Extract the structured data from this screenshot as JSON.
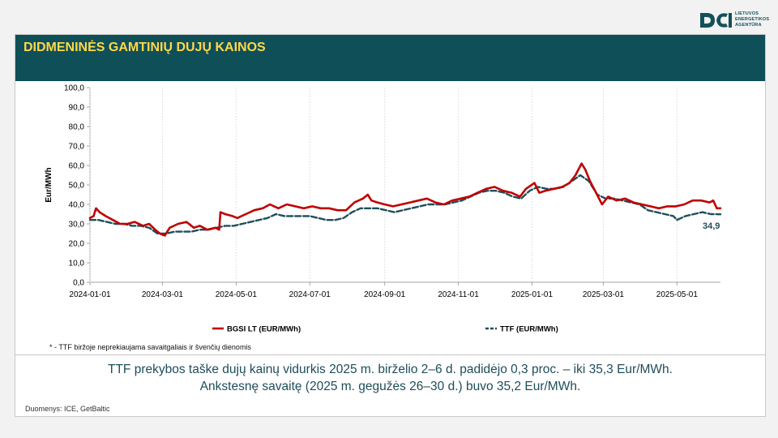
{
  "logo": {
    "lines": [
      "LIETUVOS",
      "ENERGETIKOS",
      "AGENTŪRA"
    ],
    "color": "#12505a"
  },
  "header": {
    "title": "DIDMENINĖS GAMTINIŲ DUJŲ KAINOS",
    "bg_color": "#0f4f57",
    "title_color": "#ffd84a"
  },
  "footnote": "* - TTF biržoje neprekiaujama savaitgaliais ir švenčių dienomis",
  "summary": {
    "line1": "TTF prekybos taške dujų kainų vidurkis 2025 m. birželio 2–6 d. padidėjo 0,3 proc. – iki 35,3 Eur/MWh.",
    "line2": "Ankstesnę savaitę (2025 m. gegužės 26–30 d.) buvo 35,2 Eur/MWh."
  },
  "source": "Duomenys: ICE, GetBaltic",
  "chart_data": {
    "type": "line",
    "title": "",
    "xlabel": "",
    "ylabel": "Eur/MWh",
    "ylim": [
      0,
      100
    ],
    "yticks": [
      "0,0",
      "10,0",
      "20,0",
      "30,0",
      "40,0",
      "50,0",
      "60,0",
      "70,0",
      "80,0",
      "90,0",
      "100,0"
    ],
    "xlim": [
      "2024-01-01",
      "2025-06-06"
    ],
    "xticks": [
      "2024-01-01",
      "2024-03-01",
      "2024-05-01",
      "2024-07-01",
      "2024-09-01",
      "2024-11-01",
      "2025-01-01",
      "2025-03-01",
      "2025-05-01"
    ],
    "grid": "vertical",
    "legend_position": "bottom",
    "end_label": "34,9",
    "series": [
      {
        "name": "BGSI LT (EUR/MWh)",
        "color": "#c00000",
        "style": "solid",
        "points": [
          [
            "2024-01-01",
            33
          ],
          [
            "2024-01-04",
            34
          ],
          [
            "2024-01-06",
            38
          ],
          [
            "2024-01-09",
            36
          ],
          [
            "2024-01-14",
            34
          ],
          [
            "2024-01-20",
            32
          ],
          [
            "2024-01-26",
            30
          ],
          [
            "2024-02-01",
            30
          ],
          [
            "2024-02-07",
            31
          ],
          [
            "2024-02-14",
            29
          ],
          [
            "2024-02-19",
            30
          ],
          [
            "2024-02-24",
            27
          ],
          [
            "2024-02-28",
            25
          ],
          [
            "2024-03-03",
            24
          ],
          [
            "2024-03-07",
            28
          ],
          [
            "2024-03-14",
            30
          ],
          [
            "2024-03-21",
            31
          ],
          [
            "2024-03-27",
            28
          ],
          [
            "2024-04-01",
            29
          ],
          [
            "2024-04-07",
            27
          ],
          [
            "2024-04-14",
            28
          ],
          [
            "2024-04-17",
            27
          ],
          [
            "2024-04-18",
            36
          ],
          [
            "2024-04-22",
            35
          ],
          [
            "2024-04-28",
            34
          ],
          [
            "2024-05-02",
            33
          ],
          [
            "2024-05-09",
            35
          ],
          [
            "2024-05-16",
            37
          ],
          [
            "2024-05-23",
            38
          ],
          [
            "2024-05-29",
            40
          ],
          [
            "2024-06-05",
            38
          ],
          [
            "2024-06-12",
            40
          ],
          [
            "2024-06-19",
            39
          ],
          [
            "2024-06-26",
            38
          ],
          [
            "2024-07-03",
            39
          ],
          [
            "2024-07-10",
            38
          ],
          [
            "2024-07-17",
            38
          ],
          [
            "2024-07-24",
            37
          ],
          [
            "2024-07-31",
            37
          ],
          [
            "2024-08-07",
            41
          ],
          [
            "2024-08-14",
            43
          ],
          [
            "2024-08-18",
            45
          ],
          [
            "2024-08-21",
            42
          ],
          [
            "2024-08-26",
            41
          ],
          [
            "2024-09-01",
            40
          ],
          [
            "2024-09-08",
            39
          ],
          [
            "2024-09-15",
            40
          ],
          [
            "2024-09-22",
            41
          ],
          [
            "2024-09-29",
            42
          ],
          [
            "2024-10-06",
            43
          ],
          [
            "2024-10-13",
            41
          ],
          [
            "2024-10-20",
            40
          ],
          [
            "2024-10-27",
            42
          ],
          [
            "2024-11-03",
            43
          ],
          [
            "2024-11-10",
            44
          ],
          [
            "2024-11-17",
            46
          ],
          [
            "2024-11-24",
            48
          ],
          [
            "2024-12-01",
            49
          ],
          [
            "2024-12-08",
            47
          ],
          [
            "2024-12-15",
            46
          ],
          [
            "2024-12-22",
            44
          ],
          [
            "2024-12-27",
            48
          ],
          [
            "2025-01-03",
            51
          ],
          [
            "2025-01-07",
            46
          ],
          [
            "2025-01-12",
            47
          ],
          [
            "2025-01-19",
            48
          ],
          [
            "2025-01-26",
            49
          ],
          [
            "2025-02-01",
            51
          ],
          [
            "2025-02-06",
            55
          ],
          [
            "2025-02-11",
            61
          ],
          [
            "2025-02-14",
            58
          ],
          [
            "2025-02-18",
            52
          ],
          [
            "2025-02-23",
            46
          ],
          [
            "2025-02-28",
            40
          ],
          [
            "2025-03-05",
            44
          ],
          [
            "2025-03-12",
            42
          ],
          [
            "2025-03-19",
            43
          ],
          [
            "2025-03-26",
            41
          ],
          [
            "2025-04-02",
            40
          ],
          [
            "2025-04-09",
            39
          ],
          [
            "2025-04-16",
            38
          ],
          [
            "2025-04-23",
            39
          ],
          [
            "2025-04-30",
            39
          ],
          [
            "2025-05-07",
            40
          ],
          [
            "2025-05-14",
            42
          ],
          [
            "2025-05-21",
            42
          ],
          [
            "2025-05-28",
            41
          ],
          [
            "2025-05-31",
            42
          ],
          [
            "2025-06-03",
            38
          ],
          [
            "2025-06-06",
            38
          ]
        ]
      },
      {
        "name": "TTF (EUR/MWh)",
        "color": "#1f4e5a",
        "style": "dashed",
        "points": [
          [
            "2024-01-01",
            32
          ],
          [
            "2024-01-08",
            32
          ],
          [
            "2024-01-15",
            31
          ],
          [
            "2024-01-22",
            30
          ],
          [
            "2024-01-29",
            30
          ],
          [
            "2024-02-05",
            29
          ],
          [
            "2024-02-12",
            29
          ],
          [
            "2024-02-19",
            28
          ],
          [
            "2024-02-26",
            25
          ],
          [
            "2024-03-04",
            25
          ],
          [
            "2024-03-11",
            26
          ],
          [
            "2024-03-18",
            26
          ],
          [
            "2024-03-25",
            26
          ],
          [
            "2024-04-01",
            27
          ],
          [
            "2024-04-08",
            27
          ],
          [
            "2024-04-15",
            28
          ],
          [
            "2024-04-22",
            29
          ],
          [
            "2024-04-29",
            29
          ],
          [
            "2024-05-06",
            30
          ],
          [
            "2024-05-13",
            31
          ],
          [
            "2024-05-20",
            32
          ],
          [
            "2024-05-27",
            33
          ],
          [
            "2024-06-03",
            35
          ],
          [
            "2024-06-10",
            34
          ],
          [
            "2024-06-17",
            34
          ],
          [
            "2024-06-24",
            34
          ],
          [
            "2024-07-01",
            34
          ],
          [
            "2024-07-08",
            33
          ],
          [
            "2024-07-15",
            32
          ],
          [
            "2024-07-22",
            32
          ],
          [
            "2024-07-29",
            33
          ],
          [
            "2024-08-05",
            36
          ],
          [
            "2024-08-12",
            38
          ],
          [
            "2024-08-19",
            38
          ],
          [
            "2024-08-26",
            38
          ],
          [
            "2024-09-02",
            37
          ],
          [
            "2024-09-09",
            36
          ],
          [
            "2024-09-16",
            37
          ],
          [
            "2024-09-23",
            38
          ],
          [
            "2024-09-30",
            39
          ],
          [
            "2024-10-07",
            40
          ],
          [
            "2024-10-14",
            40
          ],
          [
            "2024-10-21",
            40
          ],
          [
            "2024-10-28",
            41
          ],
          [
            "2024-11-04",
            42
          ],
          [
            "2024-11-11",
            44
          ],
          [
            "2024-11-18",
            46
          ],
          [
            "2024-11-25",
            47
          ],
          [
            "2024-12-02",
            47
          ],
          [
            "2024-12-09",
            46
          ],
          [
            "2024-12-16",
            44
          ],
          [
            "2024-12-23",
            43
          ],
          [
            "2024-12-30",
            47
          ],
          [
            "2025-01-06",
            49
          ],
          [
            "2025-01-13",
            48
          ],
          [
            "2025-01-20",
            48
          ],
          [
            "2025-01-27",
            49
          ],
          [
            "2025-02-03",
            52
          ],
          [
            "2025-02-10",
            55
          ],
          [
            "2025-02-17",
            52
          ],
          [
            "2025-02-24",
            45
          ],
          [
            "2025-03-03",
            43
          ],
          [
            "2025-03-10",
            43
          ],
          [
            "2025-03-17",
            42
          ],
          [
            "2025-03-24",
            41
          ],
          [
            "2025-03-31",
            40
          ],
          [
            "2025-04-07",
            37
          ],
          [
            "2025-04-14",
            36
          ],
          [
            "2025-04-21",
            35
          ],
          [
            "2025-04-28",
            34
          ],
          [
            "2025-05-01",
            32
          ],
          [
            "2025-05-08",
            34
          ],
          [
            "2025-05-15",
            35
          ],
          [
            "2025-05-22",
            36
          ],
          [
            "2025-05-29",
            35
          ],
          [
            "2025-06-06",
            34.9
          ]
        ]
      }
    ]
  }
}
